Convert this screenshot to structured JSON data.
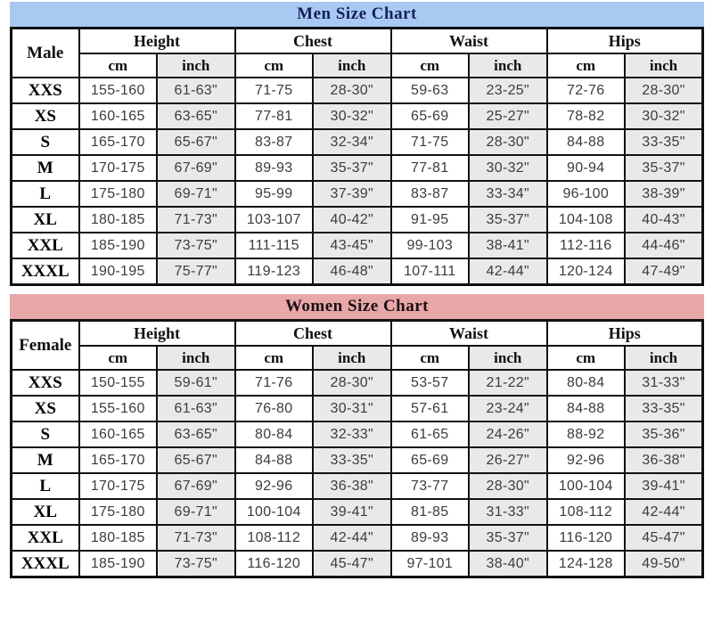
{
  "men": {
    "title": "Men Size Chart",
    "banner_bg": "#a8c9f2",
    "banner_text_color": "#14215a",
    "size_label": "Male",
    "groups": [
      "Height",
      "Chest",
      "Waist",
      "Hips"
    ],
    "unit_cm": "cm",
    "unit_inch": "inch",
    "rows": [
      {
        "size": "XXS",
        "cells": [
          "155-160",
          "61-63\"",
          "71-75",
          "28-30\"",
          "59-63",
          "23-25\"",
          "72-76",
          "28-30\""
        ]
      },
      {
        "size": "XS",
        "cells": [
          "160-165",
          "63-65\"",
          "77-81",
          "30-32\"",
          "65-69",
          "25-27\"",
          "78-82",
          "30-32\""
        ]
      },
      {
        "size": "S",
        "cells": [
          "165-170",
          "65-67\"",
          "83-87",
          "32-34\"",
          "71-75",
          "28-30\"",
          "84-88",
          "33-35\""
        ]
      },
      {
        "size": "M",
        "cells": [
          "170-175",
          "67-69\"",
          "89-93",
          "35-37\"",
          "77-81",
          "30-32\"",
          "90-94",
          "35-37\""
        ]
      },
      {
        "size": "L",
        "cells": [
          "175-180",
          "69-71\"",
          "95-99",
          "37-39\"",
          "83-87",
          "33-34\"",
          "96-100",
          "38-39\""
        ]
      },
      {
        "size": "XL",
        "cells": [
          "180-185",
          "71-73\"",
          "103-107",
          "40-42\"",
          "91-95",
          "35-37\"",
          "104-108",
          "40-43\""
        ]
      },
      {
        "size": "XXL",
        "cells": [
          "185-190",
          "73-75\"",
          "111-115",
          "43-45\"",
          "99-103",
          "38-41\"",
          "112-116",
          "44-46\""
        ]
      },
      {
        "size": "XXXL",
        "cells": [
          "190-195",
          "75-77\"",
          "119-123",
          "46-48\"",
          "107-111",
          "42-44\"",
          "120-124",
          "47-49\""
        ]
      }
    ]
  },
  "women": {
    "title": "Women Size Chart",
    "banner_bg": "#e8a7a8",
    "banner_text_color": "#1c1014",
    "size_label": "Female",
    "groups": [
      "Height",
      "Chest",
      "Waist",
      "Hips"
    ],
    "unit_cm": "cm",
    "unit_inch": "inch",
    "rows": [
      {
        "size": "XXS",
        "cells": [
          "150-155",
          "59-61\"",
          "71-76",
          "28-30\"",
          "53-57",
          "21-22\"",
          "80-84",
          "31-33\""
        ]
      },
      {
        "size": "XS",
        "cells": [
          "155-160",
          "61-63\"",
          "76-80",
          "30-31\"",
          "57-61",
          "23-24\"",
          "84-88",
          "33-35\""
        ]
      },
      {
        "size": "S",
        "cells": [
          "160-165",
          "63-65\"",
          "80-84",
          "32-33\"",
          "61-65",
          "24-26\"",
          "88-92",
          "35-36\""
        ]
      },
      {
        "size": "M",
        "cells": [
          "165-170",
          "65-67\"",
          "84-88",
          "33-35\"",
          "65-69",
          "26-27\"",
          "92-96",
          "36-38\""
        ]
      },
      {
        "size": "L",
        "cells": [
          "170-175",
          "67-69\"",
          "92-96",
          "36-38\"",
          "73-77",
          "28-30\"",
          "100-104",
          "39-41\""
        ]
      },
      {
        "size": "XL",
        "cells": [
          "175-180",
          "69-71\"",
          "100-104",
          "39-41\"",
          "81-85",
          "31-33\"",
          "108-112",
          "42-44\""
        ]
      },
      {
        "size": "XXL",
        "cells": [
          "180-185",
          "71-73\"",
          "108-112",
          "42-44\"",
          "89-93",
          "35-37\"",
          "116-120",
          "45-47\""
        ]
      },
      {
        "size": "XXXL",
        "cells": [
          "185-190",
          "73-75\"",
          "116-120",
          "45-47\"",
          "97-101",
          "38-40\"",
          "124-128",
          "49-50\""
        ]
      }
    ]
  }
}
